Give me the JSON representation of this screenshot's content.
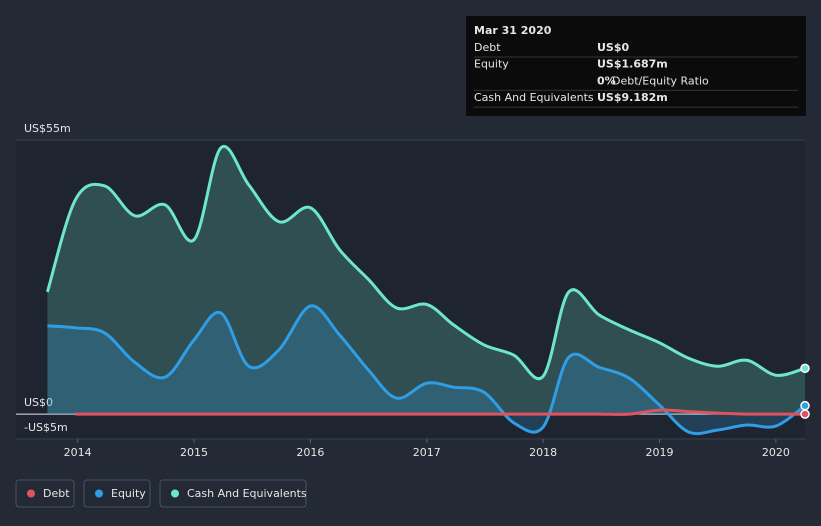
{
  "chart_data": {
    "type": "line",
    "x": [
      2013.74,
      2013.98,
      2014.23,
      2014.49,
      2014.75,
      2015.0,
      2015.23,
      2015.47,
      2015.73,
      2016.0,
      2016.25,
      2016.5,
      2016.74,
      2017.0,
      2017.23,
      2017.49,
      2017.75,
      2018.0,
      2018.22,
      2018.48,
      2018.74,
      2019.0,
      2019.25,
      2019.5,
      2019.75,
      2020.0,
      2020.25
    ],
    "series": [
      {
        "name": "Debt",
        "color": "#e05260",
        "area": false,
        "values": [
          null,
          0,
          0,
          0,
          0,
          0,
          0,
          0,
          0,
          0,
          0,
          0,
          0,
          0,
          0,
          0,
          0,
          0,
          0,
          0,
          0,
          0.8,
          0.5,
          0.2,
          0,
          0,
          0
        ]
      },
      {
        "name": "Equity",
        "color": "#2f9ee6",
        "area": true,
        "values": [
          17.7,
          17.3,
          16.3,
          10.4,
          7.4,
          14.9,
          20.3,
          9.6,
          12.9,
          21.7,
          15.9,
          8.8,
          3.2,
          6.2,
          5.4,
          4.4,
          -1.8,
          -2.6,
          11.4,
          9.4,
          7.2,
          1.8,
          -3.6,
          -3.2,
          -2.2,
          -2.4,
          1.687
        ]
      },
      {
        "name": "Cash And Equivalents",
        "color": "#6ee6cc",
        "area": true,
        "values": [
          24.5,
          43,
          45.8,
          39.8,
          42,
          35,
          53.4,
          46,
          38.6,
          41.4,
          33,
          27,
          21.3,
          22,
          17.9,
          13.9,
          11.8,
          7.6,
          24.5,
          19.9,
          16.9,
          14.3,
          11.2,
          9.6,
          10.8,
          7.8,
          9.182
        ]
      }
    ],
    "xlim": [
      2013.47,
      2020.25
    ],
    "xticks": [
      2014,
      2015,
      2016,
      2017,
      2018,
      2019,
      2020
    ],
    "ylim": [
      -5,
      55
    ],
    "yticks": [
      {
        "value": -5,
        "label": "-US$5m"
      },
      {
        "value": 0,
        "label": "US$0"
      },
      {
        "value": 55,
        "label": "US$55m"
      }
    ],
    "grid": true,
    "tooltip": {
      "title": "Mar 31 2020",
      "rows": [
        [
          "Debt",
          "US$0"
        ],
        [
          "Equity",
          "US$1.687m"
        ],
        [
          "0%",
          "Debt/Equity Ratio"
        ],
        [
          "Cash And Equivalents",
          "US$9.182m"
        ]
      ]
    }
  }
}
